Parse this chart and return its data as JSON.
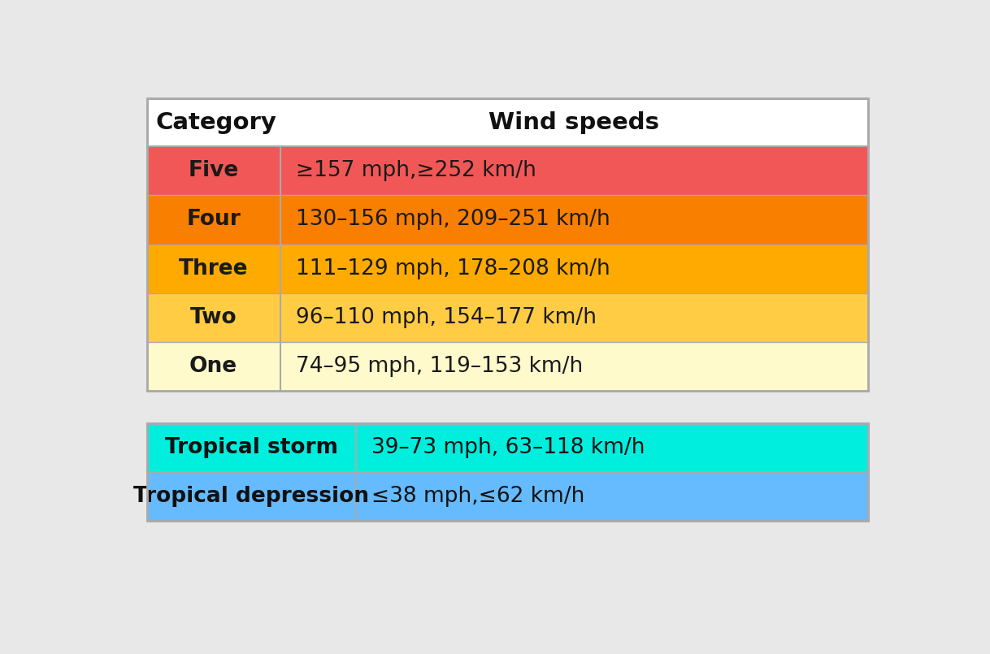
{
  "title_col1": "Category",
  "title_col2": "Wind speeds",
  "header_bg": "#f2f2f2",
  "header_text_color": "#111111",
  "background_color": "#e8e8e8",
  "rows": [
    {
      "label": "Five",
      "speed": "≥157 mph,≥252 km/h",
      "row_color": "#f25757",
      "text_color": "#1a1a1a",
      "speed_text_color": "#1a1a1a"
    },
    {
      "label": "Four",
      "speed": "130–156 mph, 209–251 km/h",
      "row_color": "#f87f00",
      "text_color": "#1a1a1a",
      "speed_text_color": "#1a1a1a"
    },
    {
      "label": "Three",
      "speed": "111–129 mph, 178–208 km/h",
      "row_color": "#ffaa00",
      "text_color": "#1a1a1a",
      "speed_text_color": "#1a1a1a"
    },
    {
      "label": "Two",
      "speed": "96–110 mph, 154–177 km/h",
      "row_color": "#ffcc44",
      "text_color": "#1a1a1a",
      "speed_text_color": "#1a1a1a"
    },
    {
      "label": "One",
      "speed": "74–95 mph, 119–153 km/h",
      "row_color": "#fffacc",
      "text_color": "#1a1a1a",
      "speed_text_color": "#1a1a1a"
    }
  ],
  "lower_rows": [
    {
      "label": "Tropical storm",
      "speed": "39–73 mph, 63–118 km/h",
      "row_color": "#00eedd",
      "text_color": "#111111",
      "speed_text_color": "#111111"
    },
    {
      "label": "Tropical depression",
      "speed": "≤38 mph,≤62 km/h",
      "row_color": "#66bbff",
      "text_color": "#111111",
      "speed_text_color": "#111111"
    }
  ],
  "col_split_table1": 0.185,
  "col_split_table2": 0.29,
  "outer_border_color": "#aaaaaa",
  "label_fontsize": 19,
  "speed_fontsize": 19,
  "header_fontsize": 21
}
